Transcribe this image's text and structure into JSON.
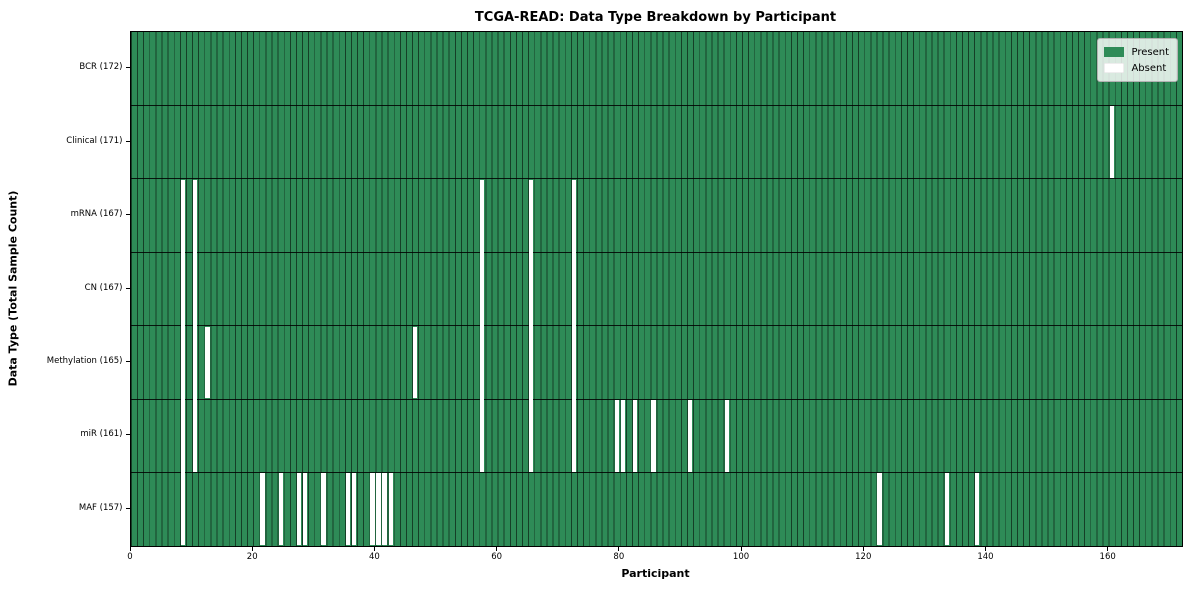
{
  "title": "TCGA-READ: Data Type Breakdown by Participant",
  "chart_data": {
    "type": "heatmap",
    "title": "TCGA-READ: Data Type Breakdown by Participant",
    "xlabel": "Participant",
    "ylabel": "Data Type (Total Sample Count)",
    "x_ticks": [
      0,
      20,
      40,
      60,
      80,
      100,
      120,
      140,
      160
    ],
    "n_participants": 172,
    "grid": "per-column and per-row separators on",
    "legend_position": "upper right",
    "colors": {
      "present": "#2e8b57",
      "absent": "#ffffff"
    },
    "legend": [
      {
        "label": "Present",
        "color": "#2e8b57"
      },
      {
        "label": "Absent",
        "color": "#ffffff"
      }
    ],
    "rows": [
      {
        "label": "BCR (172)",
        "data_type": "BCR",
        "total": 172,
        "absent_participants": []
      },
      {
        "label": "Clinical (171)",
        "data_type": "Clinical",
        "total": 171,
        "absent_participants": [
          160
        ]
      },
      {
        "label": "mRNA (167)",
        "data_type": "mRNA",
        "total": 167,
        "absent_participants": [
          8,
          10,
          57,
          65,
          72
        ]
      },
      {
        "label": "CN (167)",
        "data_type": "CN",
        "total": 167,
        "absent_participants": [
          8,
          10,
          57,
          65,
          72
        ]
      },
      {
        "label": "Methylation (165)",
        "data_type": "Methylation",
        "total": 165,
        "absent_participants": [
          8,
          10,
          12,
          46,
          57,
          65,
          72
        ]
      },
      {
        "label": "miR (161)",
        "data_type": "miR",
        "total": 161,
        "absent_participants": [
          8,
          10,
          57,
          65,
          72,
          79,
          80,
          82,
          85,
          91,
          97
        ]
      },
      {
        "label": "MAF (157)",
        "data_type": "MAF",
        "total": 157,
        "absent_participants": [
          8,
          21,
          24,
          27,
          28,
          31,
          35,
          36,
          39,
          40,
          41,
          42,
          122,
          133,
          138
        ]
      }
    ]
  }
}
